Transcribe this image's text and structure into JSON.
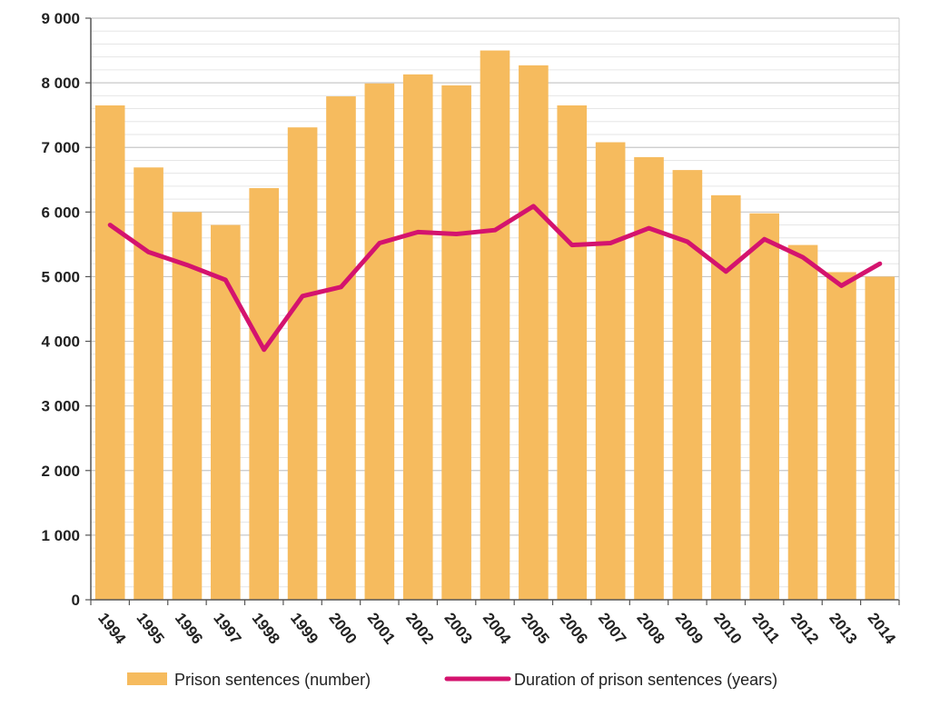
{
  "chart_data": {
    "type": "bar+line",
    "categories": [
      "1994",
      "1995",
      "1996",
      "1997",
      "1998",
      "1999",
      "2000",
      "2001",
      "2002",
      "2003",
      "2004",
      "2005",
      "2006",
      "2007",
      "2008",
      "2009",
      "2010",
      "2011",
      "2012",
      "2013",
      "2014"
    ],
    "series": [
      {
        "name": "Prison sentences (number)",
        "kind": "bar",
        "color": "#F6BB5E",
        "values": [
          7650,
          6690,
          6000,
          5800,
          6370,
          7310,
          7790,
          7990,
          8130,
          7960,
          8500,
          8270,
          7650,
          7080,
          6850,
          6650,
          6260,
          5980,
          5490,
          5070,
          5000
        ]
      },
      {
        "name": "Duration of prison sentences (years)",
        "kind": "line",
        "color": "#D4136E",
        "values_on_primary_axis": [
          5800,
          5380,
          5180,
          4950,
          3870,
          4700,
          4840,
          5520,
          5690,
          5660,
          5720,
          6090,
          5490,
          5520,
          5750,
          5540,
          5080,
          5580,
          5300,
          4860,
          5200
        ]
      }
    ],
    "y_axis": {
      "min": 0,
      "max": 9000,
      "major_ticks": [
        0,
        1000,
        2000,
        3000,
        4000,
        5000,
        6000,
        7000,
        8000,
        9000
      ],
      "tick_labels": [
        "0",
        "1 000",
        "2 000",
        "3 000",
        "4 000",
        "5 000",
        "6 000",
        "7 000",
        "8 000",
        "9 000"
      ]
    },
    "grid": true,
    "legend": {
      "placement": "bottom",
      "items": [
        "Prison sentences (number)",
        "Duration of prison sentences (years)"
      ]
    },
    "colors": {
      "bar": "#F6BB5E",
      "line": "#D4136E",
      "major_grid": "#c8c8c8",
      "minor_grid": "#e6e6e6",
      "axis": "#555555"
    }
  }
}
